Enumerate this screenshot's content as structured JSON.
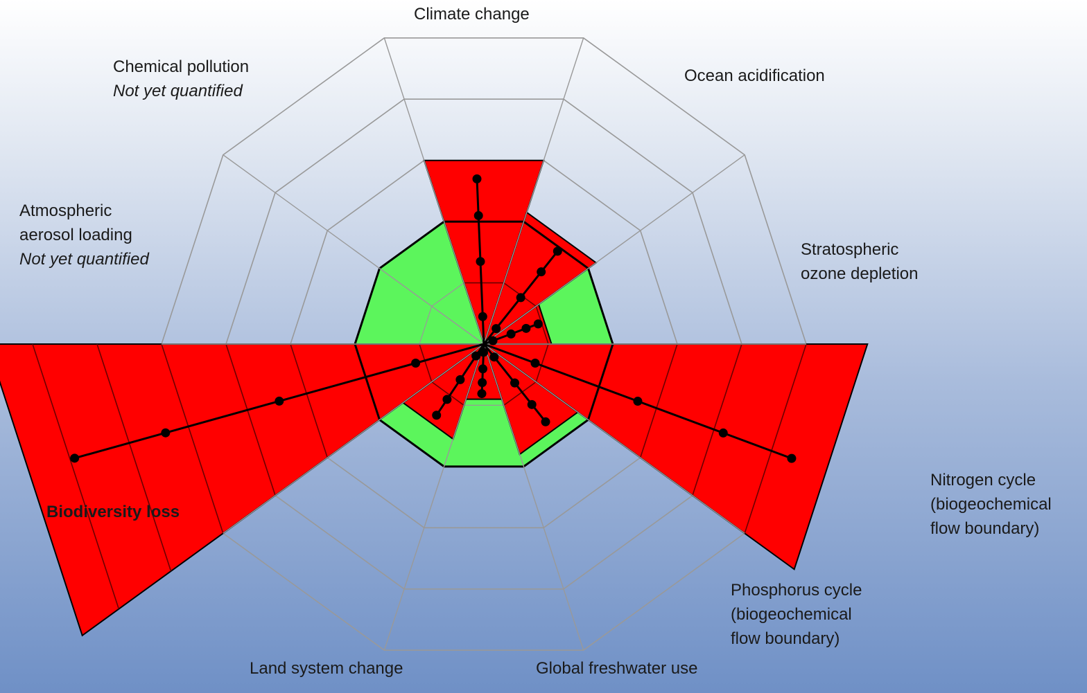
{
  "labels": {
    "climate_change": "Climate change",
    "ocean_acidification": "Ocean acidification",
    "stratospheric_ozone": [
      "Stratospheric",
      "ozone depletion"
    ],
    "nitrogen_cycle": [
      "Nitrogen cycle",
      "(biogeochemical",
      "flow boundary)"
    ],
    "phosphorus_cycle": [
      "Phosphorus cycle",
      "(biogeochemical",
      "flow boundary)"
    ],
    "global_freshwater": "Global freshwater use",
    "land_system": "Land system change",
    "biodiversity_loss": "Biodiversity loss",
    "aerosol_loading": [
      "Atmospheric",
      "aerosol loading"
    ],
    "aerosol_note": "Not yet quantified",
    "chemical_pollution": "Chemical pollution",
    "chemical_note": "Not yet quantified"
  },
  "colors": {
    "over_boundary": "#ff0000",
    "safe_zone": "#5cf55c",
    "grid": "#999999",
    "outline": "#000000"
  },
  "chart_data": {
    "type": "radar",
    "axes": [
      "Climate change",
      "Ocean acidification",
      "Stratospheric ozone depletion",
      "Nitrogen cycle",
      "Phosphorus cycle",
      "Global freshwater use",
      "Land system change",
      "Biodiversity loss",
      "Atmospheric aerosol loading",
      "Chemical pollution"
    ],
    "safe_boundary_ring": 2,
    "rings": 5,
    "current_levels": [
      3.0,
      2.15,
      1.05,
      5.95,
      1.8,
      0.9,
      1.55,
      7.7,
      null,
      null
    ]
  }
}
